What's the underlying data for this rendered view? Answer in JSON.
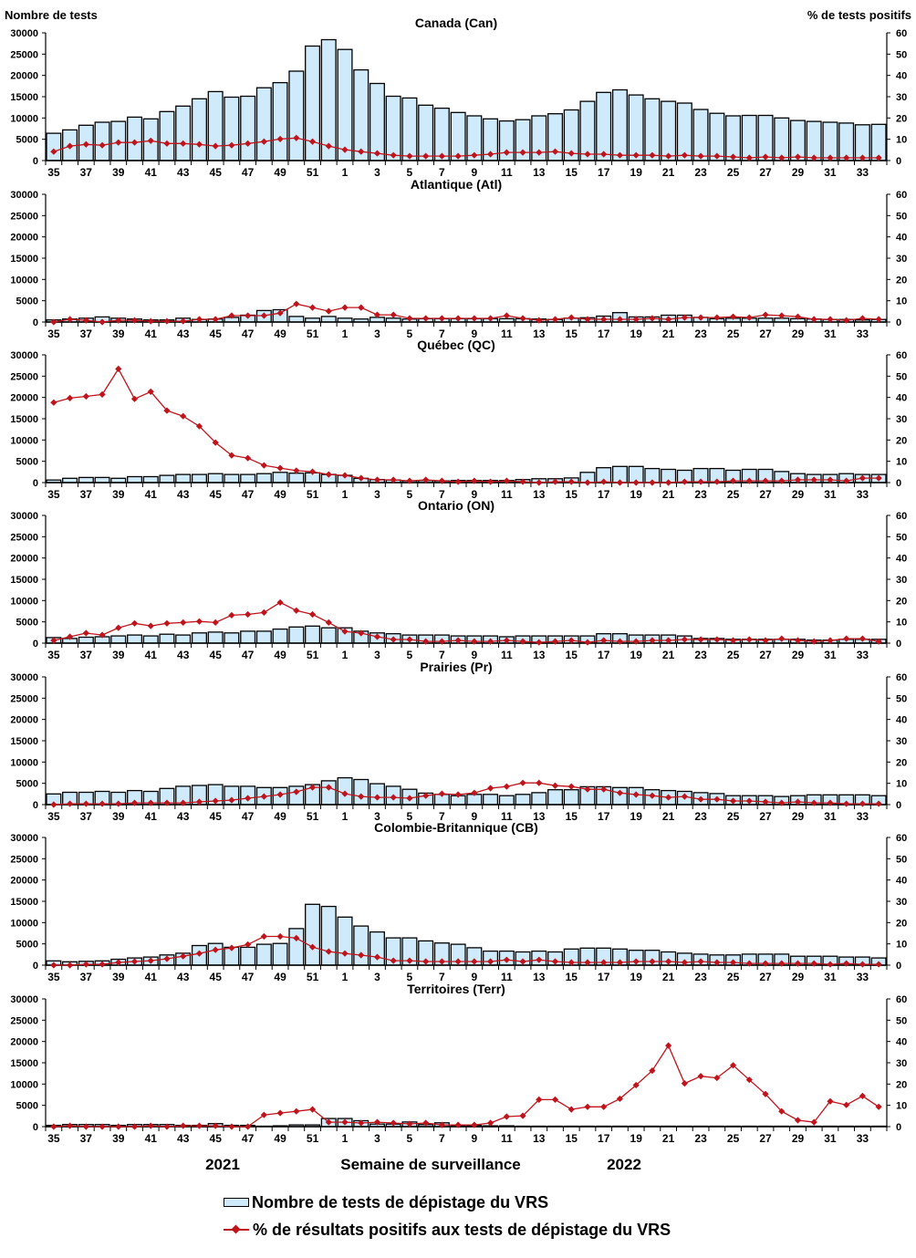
{
  "chart_data": {
    "type": "bar+line",
    "weeks": [
      35,
      36,
      37,
      38,
      39,
      40,
      41,
      42,
      43,
      44,
      45,
      46,
      47,
      48,
      49,
      50,
      51,
      52,
      1,
      2,
      3,
      4,
      5,
      6,
      7,
      8,
      9,
      10,
      11,
      12,
      13,
      14,
      15,
      16,
      17,
      18,
      19,
      20,
      21,
      22,
      23,
      24,
      25,
      26,
      27,
      28,
      29,
      30,
      31,
      32,
      33,
      34
    ],
    "tick_labels": [
      "35",
      "37",
      "39",
      "41",
      "43",
      "45",
      "47",
      "49",
      "51",
      "1",
      "3",
      "5",
      "7",
      "9",
      "11",
      "13",
      "15",
      "17",
      "19",
      "21",
      "23",
      "25",
      "27",
      "29",
      "31",
      "33"
    ],
    "left_axis": {
      "label": "Nombre de tests",
      "ylim": [
        0,
        30000
      ],
      "ticks": [
        "0",
        "5000",
        "10000",
        "15000",
        "20000",
        "25000",
        "30000"
      ]
    },
    "right_axis": {
      "label": "% de tests positifs",
      "ylim": [
        0,
        60
      ],
      "ticks": [
        "0",
        "10",
        "20",
        "30",
        "40",
        "50",
        "60"
      ]
    },
    "xlabel": "Semaine de surveillance",
    "year_labels": [
      "2021",
      "2022"
    ],
    "legend": {
      "bar": "Nombre de tests de dépistage du VRS",
      "line": "% de résultats positifs aux tests de dépistage du VRS"
    },
    "colors": {
      "bar_fill": "#cfeafb",
      "bar_stroke": "#000000",
      "line": "#c0141c"
    },
    "panels": [
      {
        "title": "Canada (Can)",
        "tests": [
          6400,
          7200,
          8300,
          9000,
          9200,
          10200,
          9800,
          11500,
          12800,
          14500,
          16200,
          14900,
          15100,
          17100,
          18300,
          21000,
          26900,
          28400,
          26100,
          21300,
          18100,
          15100,
          14700,
          13000,
          12300,
          11300,
          10500,
          9800,
          9300,
          9600,
          10500,
          11000,
          11900,
          13900,
          16000,
          16600,
          15400,
          14500,
          13900,
          13500,
          12000,
          11100,
          10500,
          10600,
          10600,
          10000,
          9400,
          9200,
          9000,
          8800,
          8400,
          8500
        ],
        "pct_positive": [
          4.2,
          6.8,
          7.6,
          7.2,
          8.5,
          8.5,
          9.3,
          8.0,
          8.0,
          7.6,
          6.8,
          7.2,
          8.0,
          8.9,
          10.1,
          10.6,
          8.9,
          6.8,
          5.1,
          4.2,
          3.4,
          2.5,
          2.1,
          2.1,
          2.1,
          2.1,
          2.5,
          3.0,
          3.8,
          3.8,
          3.8,
          4.2,
          3.4,
          3.0,
          3.0,
          2.5,
          2.5,
          2.5,
          2.1,
          2.5,
          2.1,
          2.1,
          1.7,
          1.3,
          1.7,
          1.3,
          1.7,
          1.3,
          1.3,
          1.3,
          1.3,
          1.3
        ]
      },
      {
        "title": "Atlantique (Atl)",
        "tests": [
          500,
          700,
          900,
          1200,
          900,
          700,
          500,
          500,
          900,
          600,
          700,
          1100,
          1600,
          2700,
          2900,
          1300,
          900,
          1300,
          900,
          700,
          1100,
          900,
          700,
          800,
          800,
          800,
          800,
          800,
          800,
          800,
          700,
          600,
          900,
          1000,
          1400,
          2200,
          1200,
          1200,
          1600,
          1600,
          1100,
          800,
          900,
          900,
          900,
          900,
          800,
          700,
          600,
          600,
          500,
          600
        ],
        "pct_positive": [
          0,
          1.3,
          0.8,
          0,
          0.8,
          0.8,
          0.4,
          0.4,
          0.4,
          1.3,
          1.3,
          3.0,
          3.0,
          3.0,
          4.2,
          8.5,
          6.8,
          5.1,
          6.8,
          6.8,
          3.4,
          3.4,
          1.7,
          1.7,
          1.7,
          1.7,
          1.7,
          1.7,
          3.0,
          1.7,
          0.8,
          1.3,
          2.1,
          1.3,
          1.3,
          1.3,
          1.3,
          1.7,
          1.3,
          2.1,
          2.1,
          2.1,
          2.5,
          2.1,
          3.4,
          3.0,
          2.5,
          1.3,
          1.3,
          0.8,
          1.7,
          1.3
        ]
      },
      {
        "title": "Québec (QC)",
        "tests": [
          600,
          1000,
          1200,
          1200,
          1000,
          1400,
          1400,
          1700,
          1900,
          1900,
          2100,
          1900,
          1900,
          2100,
          2400,
          2200,
          2300,
          1900,
          1700,
          1000,
          700,
          600,
          400,
          500,
          400,
          500,
          500,
          500,
          500,
          700,
          900,
          900,
          1100,
          2400,
          3500,
          3800,
          3800,
          3300,
          3100,
          2900,
          3300,
          3300,
          2900,
          3100,
          3100,
          2600,
          2100,
          1900,
          1900,
          2100,
          1900,
          1900
        ],
        "pct_positive": [
          37.6,
          39.7,
          40.5,
          41.4,
          53.4,
          39.3,
          42.7,
          33.8,
          31.2,
          26.5,
          18.8,
          12.8,
          11.5,
          8.1,
          6.8,
          5.6,
          5.1,
          3.8,
          3.4,
          2.1,
          1.3,
          1.3,
          0.8,
          1.3,
          0.8,
          0.4,
          0.8,
          0.4,
          0.8,
          0.4,
          0,
          0.4,
          0.4,
          0,
          0.4,
          0,
          0,
          0,
          0,
          0.4,
          0.4,
          0.4,
          0.8,
          0.8,
          0.8,
          0.8,
          1.3,
          1.3,
          1.3,
          0.8,
          2.1,
          2.1
        ]
      },
      {
        "title": "Ontario (ON)",
        "tests": [
          1300,
          1100,
          1400,
          1500,
          1700,
          1900,
          1700,
          2100,
          1900,
          2400,
          2600,
          2400,
          2800,
          2800,
          3300,
          3800,
          4000,
          3600,
          3600,
          2800,
          2400,
          2200,
          1900,
          1900,
          1900,
          1700,
          1700,
          1700,
          1500,
          1700,
          1700,
          1700,
          1700,
          1700,
          2200,
          2200,
          1900,
          1900,
          1900,
          1700,
          1100,
          1100,
          900,
          900,
          900,
          900,
          900,
          700,
          700,
          900,
          900,
          900
        ],
        "pct_positive": [
          1.3,
          3.0,
          4.7,
          3.8,
          7.2,
          9.3,
          8.1,
          9.3,
          9.7,
          10.2,
          9.7,
          13.1,
          13.5,
          14.4,
          19.1,
          15.3,
          13.5,
          9.7,
          5.5,
          4.7,
          3.0,
          1.7,
          1.7,
          0.8,
          0.8,
          1.3,
          0.8,
          0.8,
          1.3,
          0.8,
          0.4,
          0.8,
          1.3,
          0.4,
          1.3,
          0.8,
          0.8,
          1.3,
          1.3,
          1.7,
          1.7,
          1.7,
          1.3,
          1.7,
          1.3,
          2.1,
          1.3,
          0.8,
          1.3,
          2.1,
          2.1,
          0.8
        ]
      },
      {
        "title": "Prairies (Pr)",
        "tests": [
          2500,
          2900,
          2900,
          3100,
          2900,
          3300,
          3100,
          3800,
          4300,
          4500,
          4700,
          4300,
          4300,
          4000,
          4000,
          4300,
          4700,
          5600,
          6300,
          5900,
          4900,
          4300,
          3600,
          2700,
          2400,
          2100,
          2400,
          2400,
          2100,
          2400,
          2800,
          3500,
          3500,
          4200,
          4200,
          4000,
          4000,
          3500,
          3300,
          3100,
          2800,
          2600,
          2100,
          2100,
          2100,
          1900,
          2100,
          2300,
          2300,
          2300,
          2300,
          2100
        ],
        "pct_positive": [
          0,
          0.4,
          0.4,
          0.4,
          0.4,
          0.8,
          0.8,
          0.8,
          0.8,
          1.3,
          1.7,
          2.1,
          3.0,
          3.8,
          4.7,
          6.0,
          8.1,
          8.1,
          5.1,
          3.8,
          3.4,
          3.4,
          3.0,
          4.2,
          5.1,
          4.7,
          5.5,
          7.7,
          8.5,
          10.2,
          10.2,
          8.9,
          8.5,
          7.2,
          7.2,
          5.5,
          4.7,
          4.2,
          3.4,
          3.8,
          2.5,
          2.5,
          1.7,
          1.7,
          1.3,
          0.8,
          1.3,
          0.8,
          0.8,
          0.4,
          0.4,
          0.4
        ]
      },
      {
        "title": "Colombie-Britannique (CB)",
        "tests": [
          1000,
          800,
          900,
          1000,
          1400,
          1700,
          1900,
          2400,
          2800,
          4600,
          5100,
          4200,
          4200,
          4900,
          5100,
          8600,
          14300,
          13800,
          11300,
          9200,
          7800,
          6400,
          6400,
          5700,
          5200,
          4900,
          4100,
          3300,
          3300,
          3100,
          3300,
          3100,
          3800,
          4000,
          4000,
          3800,
          3500,
          3500,
          3100,
          2800,
          2600,
          2400,
          2400,
          2600,
          2600,
          2600,
          2100,
          2100,
          2100,
          1900,
          1900,
          1700
        ],
        "pct_positive": [
          0,
          0,
          0.4,
          0.4,
          1.3,
          1.7,
          2.1,
          3.0,
          4.2,
          5.5,
          7.2,
          8.1,
          9.7,
          13.5,
          13.5,
          12.7,
          8.5,
          6.4,
          5.5,
          4.7,
          3.8,
          2.1,
          2.1,
          1.7,
          1.7,
          1.7,
          1.7,
          1.7,
          2.5,
          1.7,
          2.5,
          1.7,
          1.3,
          1.3,
          1.3,
          1.3,
          1.7,
          1.7,
          1.7,
          1.3,
          1.7,
          1.3,
          1.3,
          0.8,
          0.8,
          0.8,
          0.8,
          0.8,
          0.4,
          0.8,
          0.4,
          0.4
        ]
      },
      {
        "title": "Territoires (Terr)",
        "tests": [
          300,
          500,
          500,
          500,
          300,
          500,
          500,
          500,
          300,
          300,
          700,
          300,
          300,
          100,
          200,
          400,
          400,
          1900,
          1900,
          1400,
          600,
          600,
          1100,
          500,
          900,
          300,
          300,
          200,
          200,
          100,
          100,
          100,
          100,
          100,
          100,
          100,
          100,
          100,
          100,
          100,
          100,
          100,
          100,
          100,
          100,
          100,
          100,
          100,
          100,
          100,
          100,
          100
        ],
        "pct_positive": [
          0,
          0.4,
          0,
          0,
          0,
          0,
          0.4,
          0,
          0.4,
          0.4,
          0.4,
          0,
          0,
          5.5,
          6.4,
          7.2,
          8.1,
          2.1,
          2.1,
          1.7,
          2.1,
          1.7,
          1.3,
          1.7,
          0.8,
          0.8,
          0.8,
          1.7,
          4.7,
          5.1,
          12.7,
          12.7,
          8.1,
          9.3,
          9.3,
          13.1,
          19.5,
          26.3,
          38.1,
          20.3,
          23.7,
          22.9,
          28.8,
          22.0,
          15.3,
          7.2,
          3.0,
          2.1,
          11.9,
          10.2,
          14.4,
          9.3
        ]
      }
    ]
  }
}
